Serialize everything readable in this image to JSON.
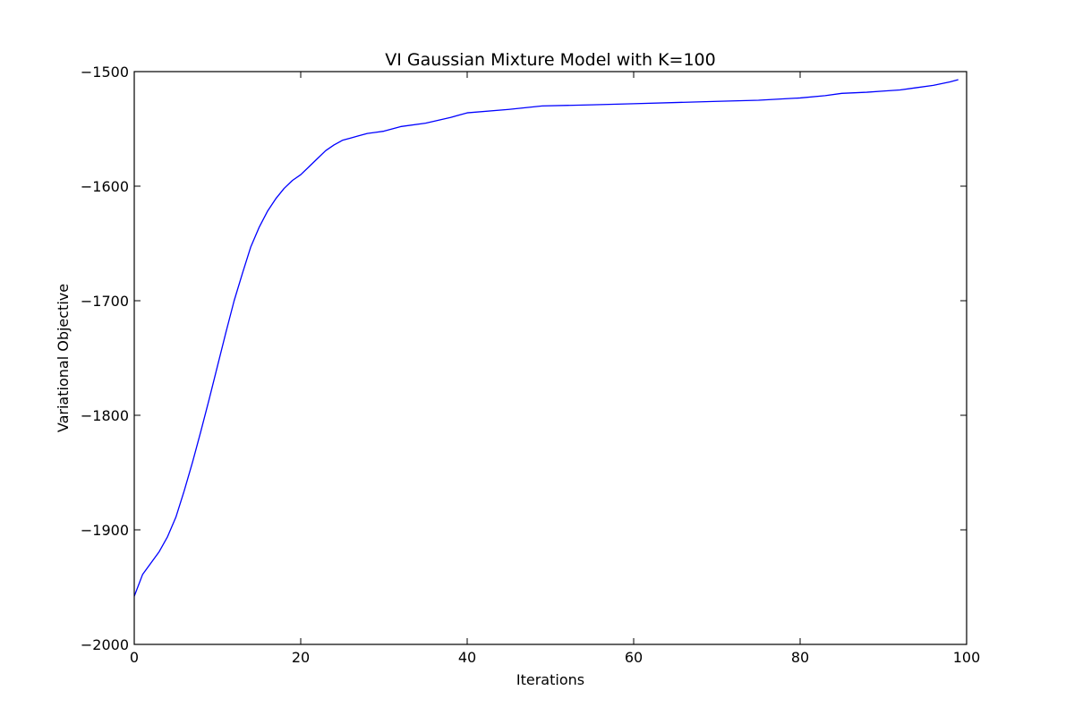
{
  "chart_data": {
    "type": "line",
    "title": "VI Gaussian Mixture Model with K=100",
    "xlabel": "Iterations",
    "ylabel": "Variational Objective",
    "xlim": [
      0,
      100
    ],
    "ylim": [
      -2000,
      -1500
    ],
    "xticks": [
      0,
      20,
      40,
      60,
      80,
      100
    ],
    "yticks": [
      -2000,
      -1900,
      -1800,
      -1700,
      -1600,
      -1500
    ],
    "xtick_labels": [
      "0",
      "20",
      "40",
      "60",
      "80",
      "100"
    ],
    "ytick_labels": [
      "−2000",
      "−1900",
      "−1800",
      "−1700",
      "−1600",
      "−1500"
    ],
    "grid": false,
    "series": [
      {
        "color": "#0000ff",
        "x": [
          0,
          1,
          2,
          3,
          4,
          5,
          6,
          7,
          8,
          9,
          10,
          11,
          12,
          13,
          14,
          15,
          16,
          17,
          18,
          19,
          20,
          21,
          22,
          23,
          24,
          25,
          26,
          27,
          28,
          29,
          30,
          32,
          35,
          38,
          40,
          45,
          49,
          55,
          60,
          65,
          70,
          75,
          80,
          83,
          85,
          88,
          90,
          92,
          94,
          96,
          98,
          99
        ],
        "y": [
          -1958,
          -1939,
          -1929,
          -1919,
          -1906,
          -1889,
          -1866,
          -1841,
          -1814,
          -1786,
          -1757,
          -1728,
          -1700,
          -1676,
          -1653,
          -1636,
          -1622,
          -1611,
          -1602,
          -1595,
          -1590,
          -1583,
          -1576,
          -1569,
          -1564,
          -1560,
          -1558,
          -1556,
          -1554,
          -1553,
          -1552,
          -1548,
          -1545,
          -1540,
          -1536,
          -1533,
          -1530,
          -1529,
          -1528,
          -1527,
          -1526,
          -1525,
          -1523,
          -1521,
          -1519,
          -1518,
          -1517,
          -1516,
          -1514,
          -1512,
          -1509,
          -1507
        ]
      }
    ]
  }
}
